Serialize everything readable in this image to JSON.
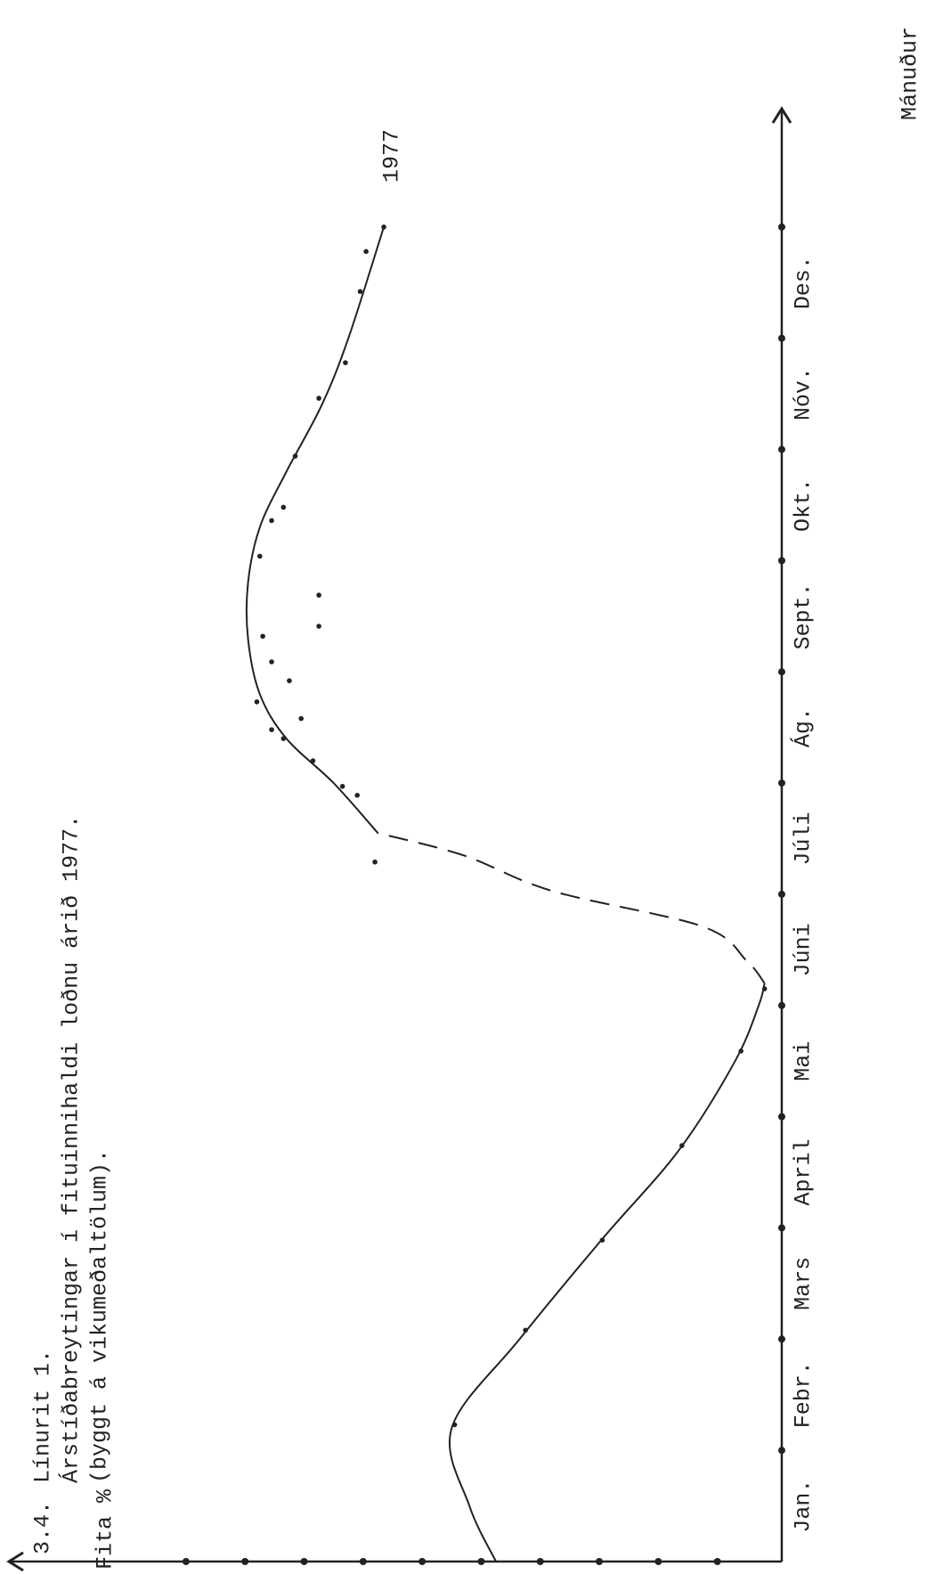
{
  "chart_data": {
    "type": "line",
    "section": "3.4.",
    "title": "Línurit 1.",
    "subtitle": "Árstíðabreytingar í fituinnihaldi loðnu árið 1977.",
    "note": "(byggt á vikumeðaltölum).",
    "y_label": "Fita %",
    "x_label": "Mánuður",
    "annotation": "1977",
    "categories": [
      "Jan.",
      "Febr.",
      "Mars",
      "April",
      "Mai",
      "Júni",
      "Júli",
      "Ág.",
      "Sept.",
      "Okt.",
      "Nóv.",
      "Des."
    ],
    "xlim": [
      0,
      13
    ],
    "xticks": [
      1,
      2,
      3,
      4,
      5,
      6,
      7,
      8,
      9,
      10,
      11,
      12
    ],
    "ylim": [
      0,
      26
    ],
    "yticks": [
      2,
      4,
      6,
      8,
      10,
      12,
      14,
      16,
      18,
      20
    ],
    "color": "#222222",
    "series": [
      {
        "style": "solid",
        "x": [
          0,
          0.5,
          1.2,
          2.0,
          2.9,
          3.7,
          4.5,
          5.0,
          5.2
        ],
        "values": [
          9.5,
          10.4,
          11.0,
          8.7,
          5.9,
          3.3,
          1.4,
          0.6,
          0.4
        ]
      },
      {
        "style": "dashed",
        "x": [
          5.2,
          5.4,
          5.71,
          6.03,
          6.35,
          6.55
        ],
        "values": [
          0.4,
          1.0,
          2.5,
          7.6,
          10.6,
          13.5
        ]
      },
      {
        "style": "solid",
        "x": [
          6.55,
          7.0,
          7.4,
          7.8,
          8.3,
          8.8,
          9.3,
          9.8,
          10.4,
          11.0,
          12.0
        ],
        "values": [
          13.5,
          15.0,
          16.6,
          17.5,
          17.9,
          17.9,
          17.5,
          16.6,
          15.4,
          14.5,
          13.3
        ]
      },
      {
        "style": "points",
        "x": [
          1.23,
          2.08,
          2.89,
          3.74,
          4.59,
          5.15,
          6.29,
          6.89,
          6.97,
          7.2,
          7.4,
          7.48,
          7.58,
          7.73,
          7.92,
          8.09,
          8.32,
          8.41,
          8.69,
          9.04,
          9.36,
          9.48,
          9.94,
          10.46,
          10.78,
          11.42,
          11.78,
          12.0
        ],
        "values": [
          10.9,
          8.5,
          5.9,
          3.2,
          1.2,
          0.4,
          13.6,
          14.2,
          14.7,
          15.7,
          16.7,
          17.1,
          16.1,
          17.6,
          16.5,
          17.1,
          17.4,
          15.5,
          15.5,
          17.5,
          17.1,
          16.7,
          16.3,
          15.5,
          14.6,
          14.1,
          13.9,
          13.3
        ]
      }
    ]
  }
}
